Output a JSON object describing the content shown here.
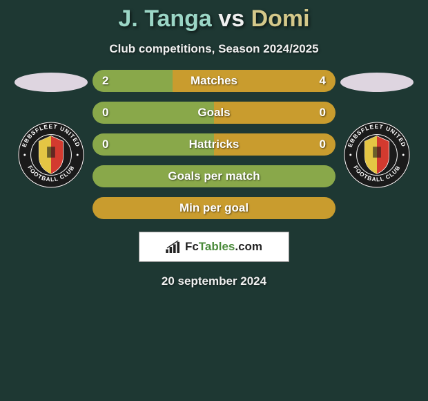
{
  "header": {
    "player1": "J. Tanga",
    "vs": "vs",
    "player2": "Domi",
    "subtitle": "Club competitions, Season 2024/2025"
  },
  "colors": {
    "player1_accent": "#89a84a",
    "player2_accent": "#c99c2e",
    "badge_outer": "#1a1a1a",
    "badge_text": "#ffffff",
    "badge_inner_red": "#d33a2f",
    "badge_inner_yellow": "#e4c544",
    "background": "#1e3833"
  },
  "stats": [
    {
      "label": "Matches",
      "left_val": "2",
      "right_val": "4",
      "left_pct": 33,
      "right_pct": 67
    },
    {
      "label": "Goals",
      "left_val": "0",
      "right_val": "0",
      "left_pct": 50,
      "right_pct": 50
    },
    {
      "label": "Hattricks",
      "left_val": "0",
      "right_val": "0",
      "left_pct": 50,
      "right_pct": 50
    },
    {
      "label": "Goals per match",
      "left_val": "",
      "right_val": "",
      "left_pct": 100,
      "right_pct": 0
    },
    {
      "label": "Min per goal",
      "left_val": "",
      "right_val": "",
      "left_pct": 0,
      "right_pct": 100
    }
  ],
  "brand": {
    "name_part1": "Fc",
    "name_part2": "Tables",
    "name_part3": ".com"
  },
  "date": "20 september 2024",
  "badge": {
    "club_top": "EBBSFLEET UNITED",
    "club_bottom": "FOOTBALL CLUB"
  }
}
